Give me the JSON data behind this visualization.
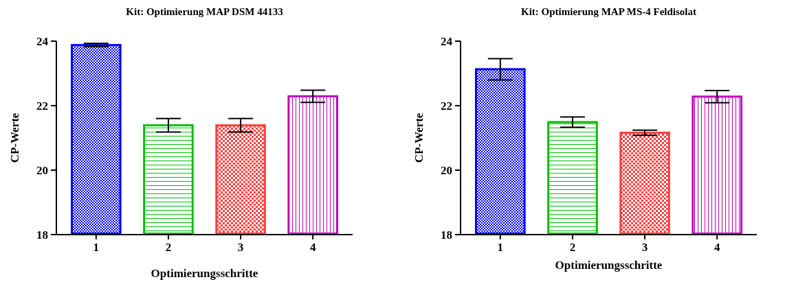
{
  "chart_data": [
    {
      "type": "bar",
      "title": "Kit: Optimierung MAP DSM 44133",
      "xlabel": "Optimierungsschritte",
      "ylabel": "CP-Werte",
      "categories": [
        "1",
        "2",
        "3",
        "4"
      ],
      "values": [
        23.88,
        21.39,
        21.39,
        22.29
      ],
      "errors": [
        0.05,
        0.21,
        0.21,
        0.19
      ],
      "colors": [
        "#0000ff",
        "#00c000",
        "#ff4040",
        "#c000c0"
      ],
      "ylim": [
        18,
        24
      ],
      "yticks": [
        18,
        20,
        22,
        24
      ]
    },
    {
      "type": "bar",
      "title": "Kit: Optimierung MAP MS-4 Feldisolat",
      "xlabel": "Optimierungsschritte",
      "ylabel": "CP-Werte",
      "categories": [
        "1",
        "2",
        "3",
        "4"
      ],
      "values": [
        23.13,
        21.49,
        21.16,
        22.28
      ],
      "errors": [
        0.33,
        0.16,
        0.08,
        0.19
      ],
      "colors": [
        "#0000ff",
        "#00c000",
        "#ff4040",
        "#c000c0"
      ],
      "ylim": [
        18,
        24
      ],
      "yticks": [
        18,
        20,
        22,
        24
      ]
    }
  ]
}
